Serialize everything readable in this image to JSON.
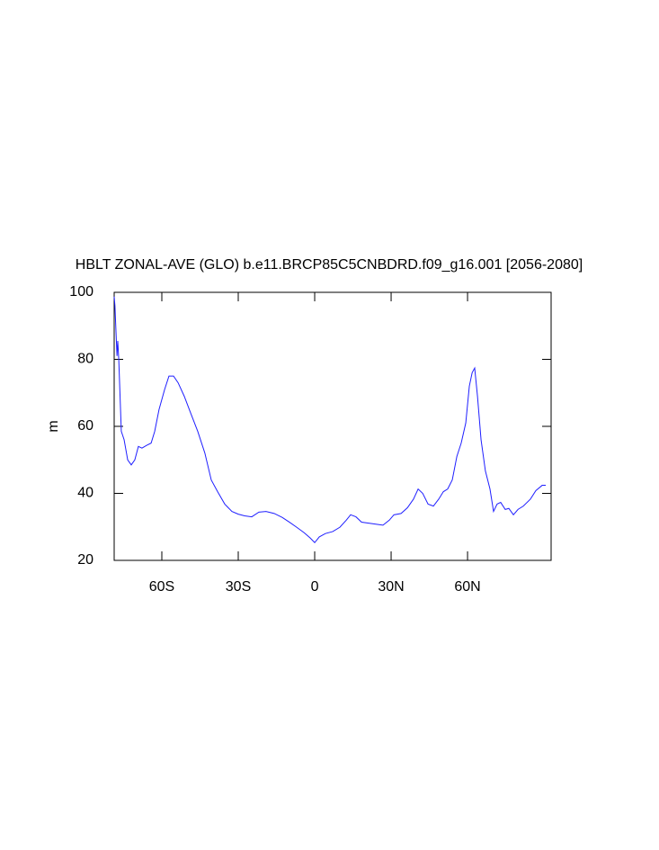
{
  "chart_data": {
    "type": "line",
    "title": "HBLT ZONAL-AVE (GLO) b.e11.BRCP85C5CNBDRD.f09_g16.001 [2056-2080]",
    "y_label": "m",
    "x": [
      -78.7,
      -78.4,
      -77.6,
      -77.3,
      -76.9,
      -75.9,
      -74.8,
      -73.4,
      -72.0,
      -70.6,
      -69.2,
      -67.8,
      -66.0,
      -64.2,
      -62.8,
      -61.1,
      -58.9,
      -57.2,
      -55.4,
      -53.6,
      -51.2,
      -48.7,
      -45.9,
      -43.1,
      -40.6,
      -38.1,
      -35.3,
      -32.5,
      -30.0,
      -27.5,
      -24.7,
      -21.9,
      -19.1,
      -15.9,
      -12.7,
      -9.9,
      -7.1,
      -4.2,
      -1.8,
      0,
      1.8,
      4.2,
      7.1,
      9.9,
      12.4,
      14.1,
      16.2,
      18.4,
      21.2,
      24.0,
      26.8,
      29.3,
      31.1,
      33.9,
      36.4,
      38.8,
      40.6,
      42.4,
      44.5,
      46.6,
      48.7,
      50.5,
      52.2,
      54.0,
      55.8,
      57.5,
      59.3,
      60.7,
      61.8,
      62.8,
      63.9,
      65.3,
      67.0,
      68.8,
      70.2,
      71.6,
      73.0,
      74.8,
      76.2,
      78.0,
      79.8,
      81.9,
      84.7,
      86.8,
      89.3,
      90.7
    ],
    "series": [
      {
        "name": "HBLT",
        "color": "#1f1fff",
        "values": [
          98.7,
          96,
          81,
          85.5,
          80,
          58.5,
          56,
          50,
          48.5,
          50,
          54,
          53.5,
          54.3,
          55,
          58.5,
          65,
          71,
          75,
          75,
          73,
          69,
          64,
          58.5,
          52,
          44,
          40.5,
          36.8,
          34.6,
          33.8,
          33.3,
          33,
          34.4,
          34.6,
          34,
          32.8,
          31.4,
          29.9,
          28.3,
          26.7,
          25.3,
          27,
          28,
          28.6,
          29.9,
          32,
          33.6,
          33,
          31.4,
          31.1,
          30.8,
          30.5,
          32,
          33.6,
          34,
          35.7,
          38.3,
          41.3,
          40,
          36.8,
          36.2,
          38.3,
          40.5,
          41.3,
          44,
          51,
          55,
          61,
          72,
          76,
          77.4,
          69,
          56,
          46.7,
          41.3,
          34.6,
          36.8,
          37.3,
          35.2,
          35.5,
          33.6,
          35.2,
          36.2,
          38.3,
          40.8,
          42.4,
          42.4
        ]
      }
    ],
    "xlim": [
      -78.7,
      92.8
    ],
    "ylim": [
      20,
      100
    ],
    "xticks": [
      {
        "value": -60,
        "label": "60S"
      },
      {
        "value": -30,
        "label": "30S"
      },
      0,
      {
        "value": 30,
        "label": "30N"
      },
      {
        "value": 60,
        "label": "60N"
      }
    ],
    "yticks": [
      20,
      40,
      60,
      80,
      100
    ]
  }
}
